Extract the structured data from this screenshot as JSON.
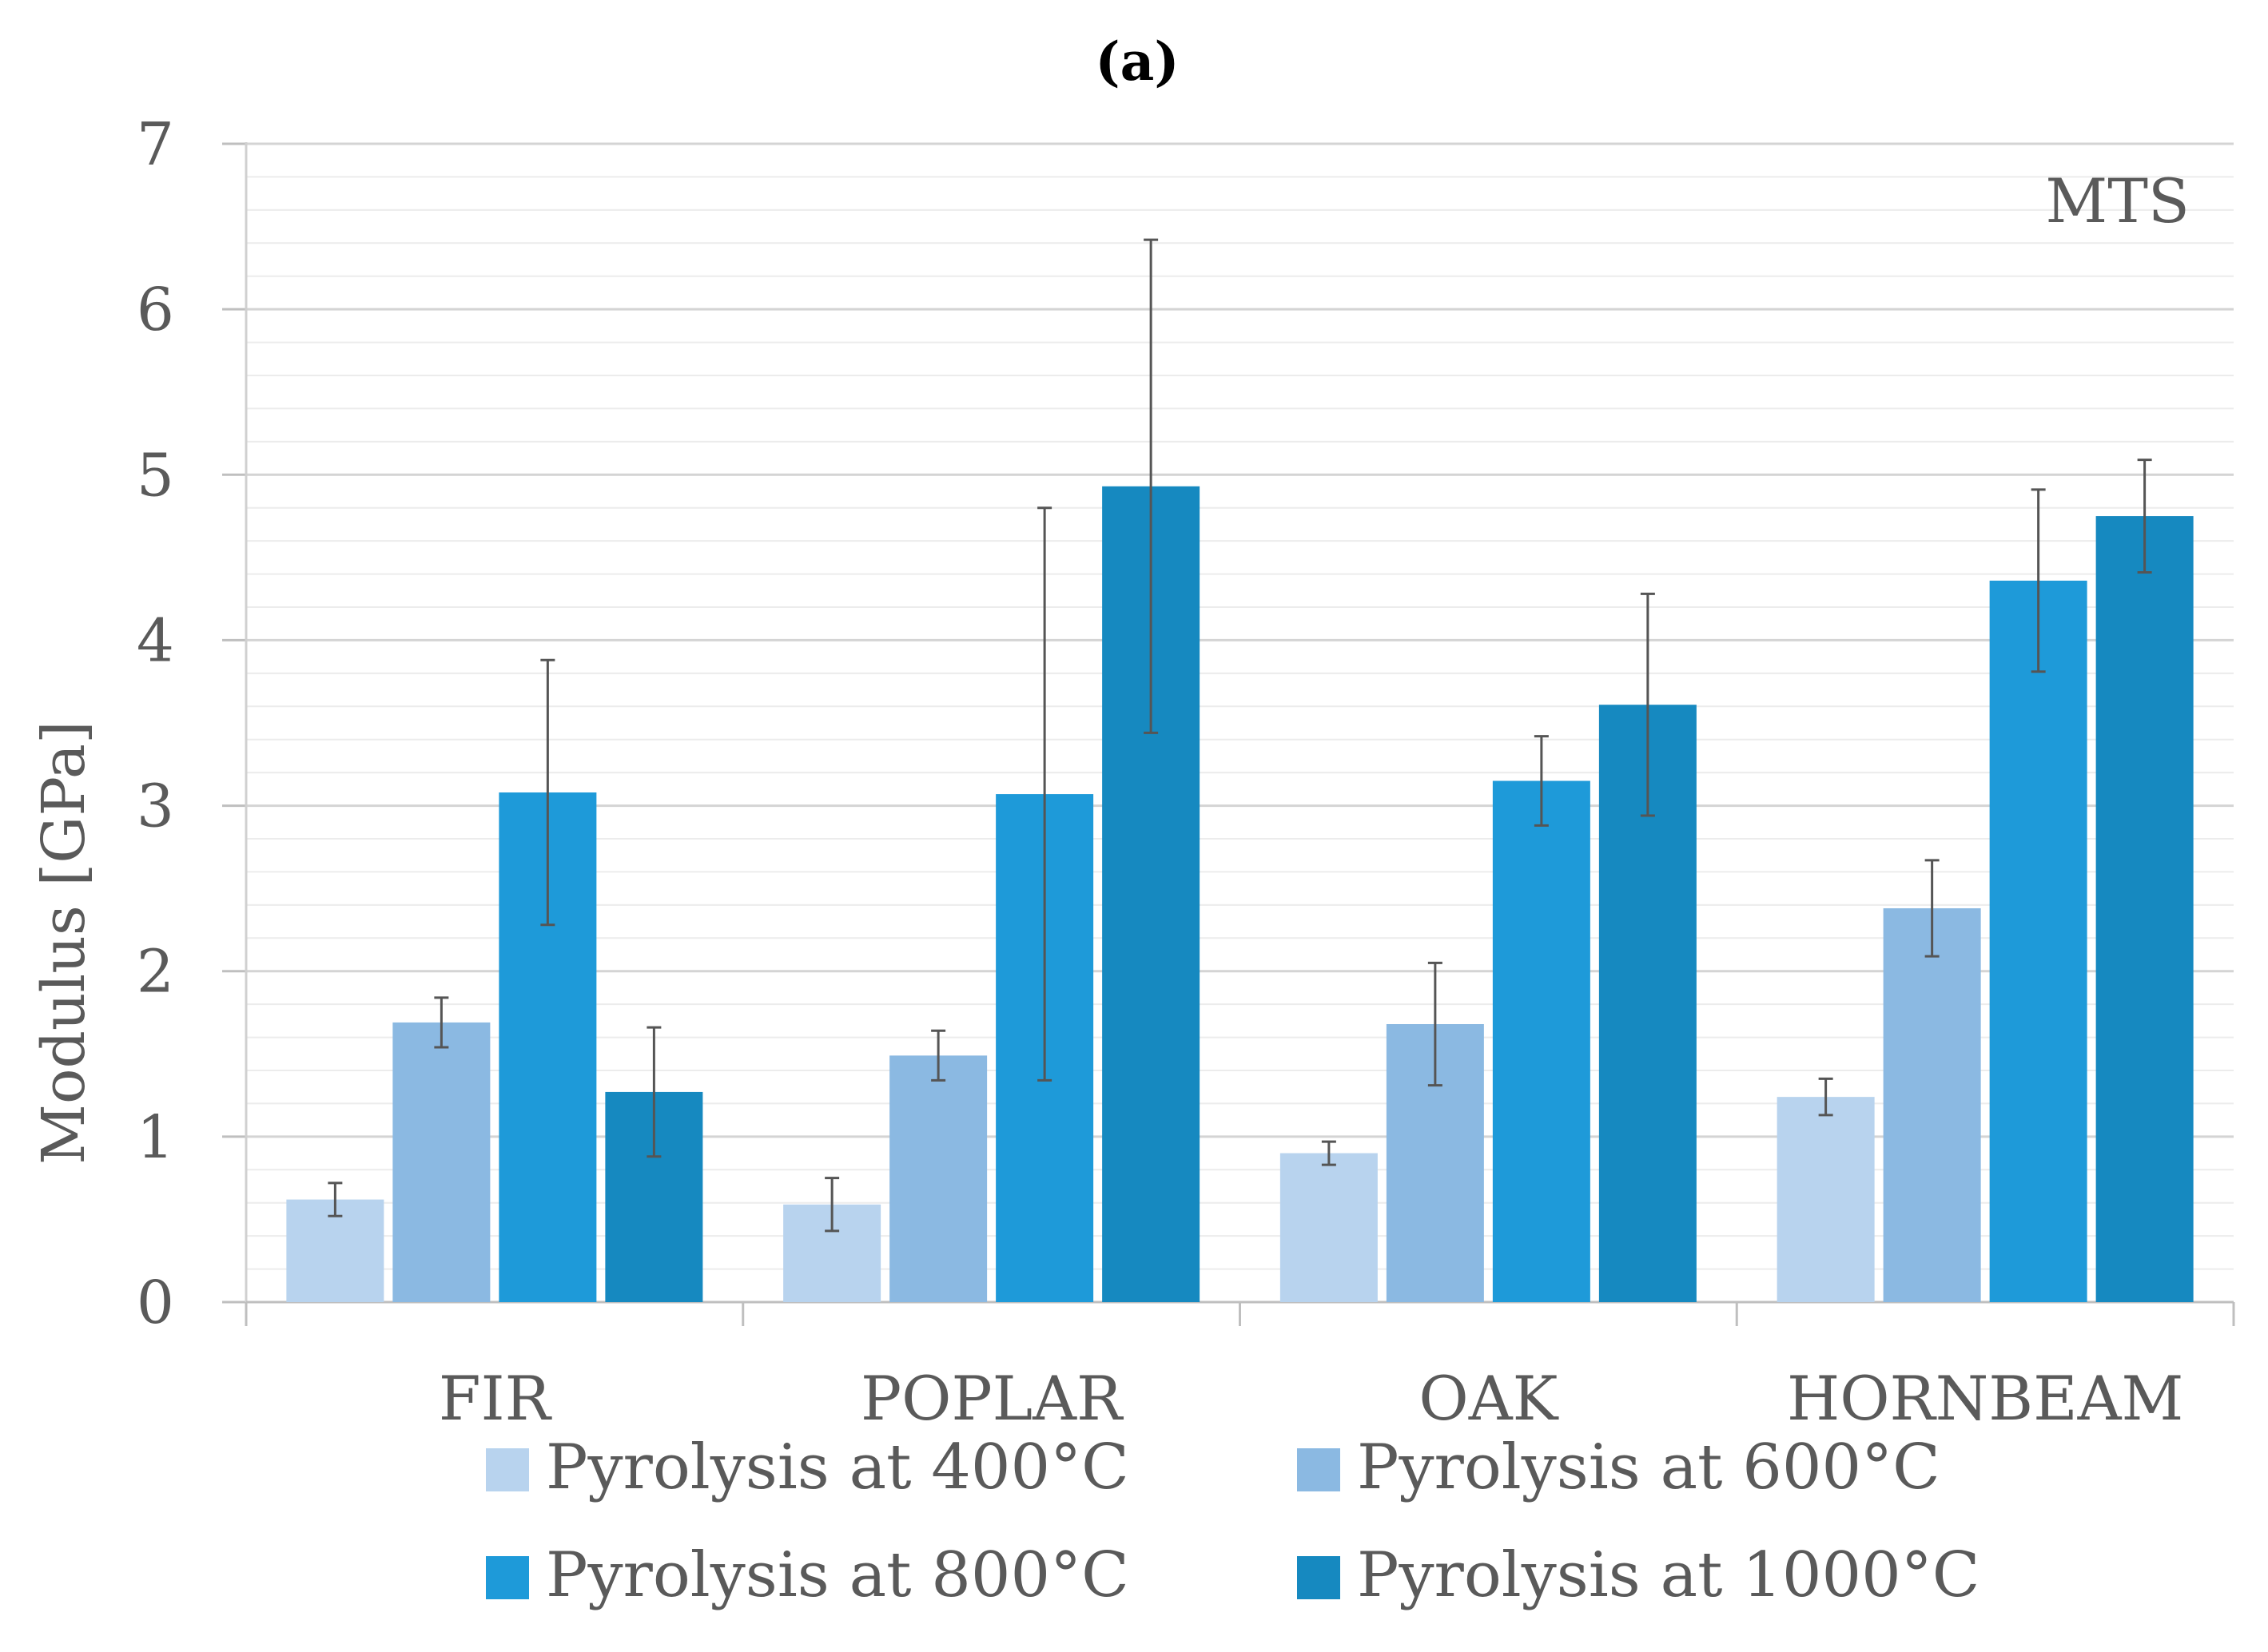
{
  "chart_data": {
    "type": "bar",
    "title": "(a)",
    "annotation": "MTS",
    "xlabel": "",
    "ylabel": "Modulus [GPa]",
    "ylim": [
      0,
      7
    ],
    "y_major_ticks": [
      0,
      1,
      2,
      3,
      4,
      5,
      6,
      7
    ],
    "y_tick_labels": [
      "0",
      "1",
      "2",
      "3",
      "4",
      "5",
      "6",
      "7"
    ],
    "y_minor_step": 0.2,
    "grid": true,
    "legend_position": "bottom",
    "categories": [
      "FIR",
      "POPLAR",
      "OAK",
      "HORNBEAM"
    ],
    "series": [
      {
        "name": "Pyrolysis at 400°C",
        "color": "#b8d3ee",
        "values": [
          0.62,
          0.59,
          0.9,
          1.24
        ],
        "errors": [
          0.1,
          0.16,
          0.07,
          0.11
        ]
      },
      {
        "name": "Pyrolysis at 600°C",
        "color": "#8bb9e2",
        "values": [
          1.69,
          1.49,
          1.68,
          2.38
        ],
        "errors": [
          0.15,
          0.15,
          0.37,
          0.29
        ]
      },
      {
        "name": "Pyrolysis at 800°C",
        "color": "#1e9ad9",
        "values": [
          3.08,
          3.07,
          3.15,
          4.36
        ],
        "errors": [
          0.8,
          1.73,
          0.27,
          0.55
        ]
      },
      {
        "name": "Pyrolysis at 1000°C",
        "color": "#1689c0",
        "values": [
          1.27,
          4.93,
          3.61,
          4.75
        ],
        "errors": [
          0.39,
          1.49,
          0.67,
          0.34
        ]
      }
    ]
  }
}
